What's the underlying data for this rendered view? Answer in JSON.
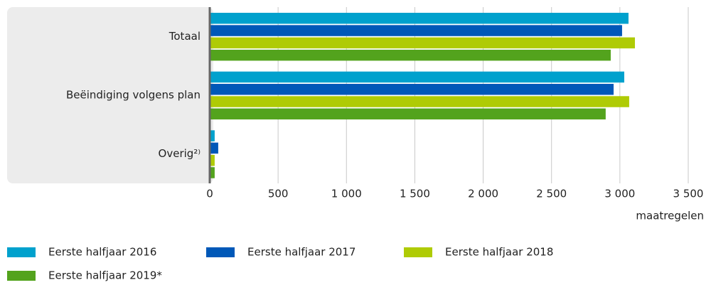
{
  "chart_data": {
    "type": "bar",
    "orientation": "horizontal",
    "categories": [
      "Totaal",
      "Beëindiging volgens plan",
      "Overig²⁾"
    ],
    "series": [
      {
        "name": "Eerste halfjaar 2016",
        "color": "#00a1cd",
        "values": [
          3063,
          3032,
          36
        ]
      },
      {
        "name": "Eerste halfjaar 2017",
        "color": "#0058b8",
        "values": [
          3016,
          2954,
          62
        ]
      },
      {
        "name": "Eerste halfjaar 2018",
        "color": "#afcb05",
        "values": [
          3110,
          3068,
          36
        ]
      },
      {
        "name": "Eerste halfjaar 2019*",
        "color": "#53a31d",
        "values": [
          2933,
          2896,
          36
        ]
      }
    ],
    "x_label": "maatregelen",
    "xlim": [
      0,
      3500
    ],
    "xticks": [
      0,
      500,
      {
        "value": 1000,
        "label": "1 000"
      },
      {
        "value": 1500,
        "label": "1 500"
      },
      {
        "value": 2000,
        "label": "2 000"
      },
      {
        "value": 2500,
        "label": "2 500"
      },
      {
        "value": 3000,
        "label": "3 000"
      },
      {
        "value": 3500,
        "label": "3 500"
      }
    ],
    "grid": true,
    "legend": "bottom"
  }
}
